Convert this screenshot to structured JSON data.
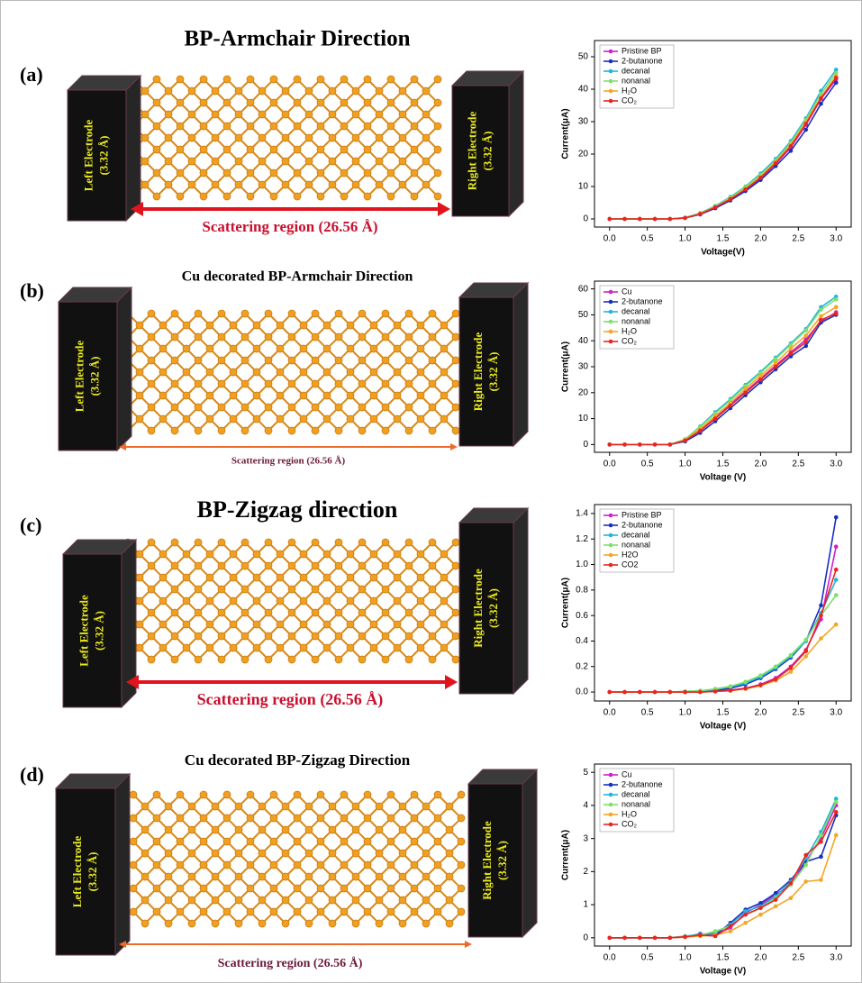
{
  "panels": [
    {
      "label": "(a)",
      "title": "BP-Armchair Direction",
      "left_electrode": "Left Electrode",
      "left_width": "(3.32 Å)",
      "right_electrode": "Right Electrode",
      "right_width": "(3.32 Å)",
      "scattering": "Scattering region (26.56 Å)"
    },
    {
      "label": "(b)",
      "title": "Cu decorated BP-Armchair Direction",
      "left_electrode": "Left Electrode",
      "left_width": "(3.32 Å)",
      "right_electrode": "Right Electrode",
      "right_width": "(3.32 Å)",
      "scattering": "Scattering region (26.56 Å)"
    },
    {
      "label": "(c)",
      "title": "BP-Zigzag direction",
      "left_electrode": "Left Electrode",
      "left_width": "(3.32 Å)",
      "right_electrode": "Right Electrode",
      "right_width": "(3.32 Å)",
      "scattering": "Scattering region (26.56 Å)"
    },
    {
      "label": "(d)",
      "title": "Cu decorated BP-Zigzag Direction",
      "left_electrode": "Left Electrode",
      "left_width": "(3.32 Å)",
      "right_electrode": "Right Electrode",
      "right_width": "(3.32 Å)",
      "scattering": "Scattering region (26.56 Å)"
    }
  ],
  "chart_data": [
    {
      "type": "line",
      "x_label": "Voltage(V)",
      "y_label": "Current(μA)",
      "x": [
        0,
        0.2,
        0.4,
        0.6,
        0.8,
        1.0,
        1.2,
        1.4,
        1.6,
        1.8,
        2.0,
        2.2,
        2.4,
        2.6,
        2.8,
        3.0
      ],
      "xlim": [
        -0.2,
        3.2
      ],
      "xticks": [
        {
          "value": 0,
          "label": "0.0"
        },
        {
          "value": 0.5,
          "label": "0.5"
        },
        {
          "value": 1,
          "label": "1.0"
        },
        {
          "value": 1.5,
          "label": "1.5"
        },
        {
          "value": 2,
          "label": "2.0"
        },
        {
          "value": 2.5,
          "label": "2.5"
        },
        {
          "value": 3,
          "label": "3.0"
        }
      ],
      "ylim": [
        -2.5,
        55
      ],
      "yticks": [
        0,
        10,
        20,
        30,
        40,
        50
      ],
      "legend": "upper-left",
      "series": [
        {
          "name": "Pristine BP",
          "color": "#d020d0",
          "values": [
            0,
            0,
            0,
            0,
            0,
            0.3,
            1.5,
            3.5,
            6,
            9,
            12.5,
            17,
            22,
            29,
            37,
            43
          ]
        },
        {
          "name": "2-butanone",
          "color": "#1a2fbf",
          "values": [
            0,
            0,
            0,
            0,
            0,
            0.3,
            1.4,
            3.3,
            5.7,
            8.6,
            12,
            16.3,
            21,
            27.5,
            35.5,
            42
          ]
        },
        {
          "name": "decanal",
          "color": "#1fb5e0",
          "values": [
            0,
            0,
            0,
            0,
            0,
            0.4,
            1.8,
            4,
            6.8,
            10,
            14,
            18.5,
            24,
            31,
            39.5,
            46
          ]
        },
        {
          "name": "nonanal",
          "color": "#7de06a",
          "values": [
            0,
            0,
            0,
            0,
            0,
            0.4,
            1.7,
            3.9,
            6.6,
            9.8,
            13.6,
            18,
            23.5,
            30.5,
            38.5,
            45
          ]
        },
        {
          "name": "H₂O",
          "color": "#f5a623",
          "values": [
            0,
            0,
            0,
            0,
            0,
            0.3,
            1.6,
            3.7,
            6.2,
            9.3,
            13,
            17.5,
            22.8,
            29.8,
            37.5,
            44
          ]
        },
        {
          "name": "CO₂",
          "color": "#e8251f",
          "values": [
            0,
            0,
            0,
            0,
            0,
            0.3,
            1.5,
            3.6,
            6.1,
            9.1,
            12.7,
            17.2,
            22.4,
            29.3,
            37.2,
            43.5
          ]
        }
      ]
    },
    {
      "type": "line",
      "x_label": "Voltage (V)",
      "y_label": "Current(μA)",
      "x": [
        0,
        0.2,
        0.4,
        0.6,
        0.8,
        1.0,
        1.2,
        1.4,
        1.6,
        1.8,
        2.0,
        2.2,
        2.4,
        2.6,
        2.8,
        3.0
      ],
      "xlim": [
        -0.2,
        3.2
      ],
      "xticks": [
        {
          "value": 0,
          "label": "0.0"
        },
        {
          "value": 0.5,
          "label": "0.5"
        },
        {
          "value": 1,
          "label": "1.0"
        },
        {
          "value": 1.5,
          "label": "1.5"
        },
        {
          "value": 2,
          "label": "2.0"
        },
        {
          "value": 2.5,
          "label": "2.5"
        },
        {
          "value": 3,
          "label": "3.0"
        }
      ],
      "ylim": [
        -3,
        63
      ],
      "yticks": [
        0,
        10,
        20,
        30,
        40,
        50,
        60
      ],
      "legend": "upper-left",
      "series": [
        {
          "name": "Cu",
          "color": "#d020d0",
          "values": [
            0,
            0,
            0,
            0,
            0,
            1.5,
            5.5,
            10.5,
            15.5,
            20.5,
            25.5,
            30.5,
            35.5,
            40.5,
            47.5,
            51
          ]
        },
        {
          "name": "2-butanone",
          "color": "#1a2fbf",
          "values": [
            0,
            0,
            0,
            0,
            0,
            1.2,
            4.5,
            9,
            14,
            19,
            24,
            29,
            34,
            38,
            47,
            50
          ]
        },
        {
          "name": "decanal",
          "color": "#1fb5e0",
          "values": [
            0,
            0,
            0,
            0,
            0,
            2,
            7,
            12.5,
            17.5,
            23,
            28,
            33.5,
            39,
            44.5,
            53,
            57
          ]
        },
        {
          "name": "nonanal",
          "color": "#7de06a",
          "values": [
            0,
            0,
            0,
            0,
            0,
            2,
            6.8,
            12,
            17,
            22.5,
            27.5,
            33,
            38.5,
            44,
            52,
            56
          ]
        },
        {
          "name": "H₂O",
          "color": "#f5a623",
          "values": [
            0,
            0,
            0,
            0,
            0,
            1.7,
            6,
            11,
            16,
            21.5,
            26.5,
            31.5,
            37,
            42,
            49.5,
            53
          ]
        },
        {
          "name": "CO₂",
          "color": "#e8251f",
          "values": [
            0,
            0,
            0,
            0,
            0,
            1.5,
            5.3,
            10,
            15,
            20,
            25,
            30,
            35,
            39.5,
            48,
            50.5
          ]
        }
      ]
    },
    {
      "type": "line",
      "x_label": "Voltage (V)",
      "y_label": "Current(μA)",
      "x": [
        0,
        0.2,
        0.4,
        0.6,
        0.8,
        1.0,
        1.2,
        1.4,
        1.6,
        1.8,
        2.0,
        2.2,
        2.4,
        2.6,
        2.8,
        3.0
      ],
      "xlim": [
        -0.2,
        3.2
      ],
      "xticks": [
        {
          "value": 0,
          "label": "0.0"
        },
        {
          "value": 0.5,
          "label": "0.5"
        },
        {
          "value": 1,
          "label": "1.0"
        },
        {
          "value": 1.5,
          "label": "1.5"
        },
        {
          "value": 2,
          "label": "2.0"
        },
        {
          "value": 2.5,
          "label": "2.5"
        },
        {
          "value": 3,
          "label": "3.0"
        }
      ],
      "ylim": [
        -0.07,
        1.47
      ],
      "yticks": [
        {
          "value": 0,
          "label": "0.0"
        },
        {
          "value": 0.2,
          "label": "0.2"
        },
        {
          "value": 0.4,
          "label": "0.4"
        },
        {
          "value": 0.6,
          "label": "0.6"
        },
        {
          "value": 0.8,
          "label": "0.8"
        },
        {
          "value": 1,
          "label": "1.0"
        },
        {
          "value": 1.2,
          "label": "1.2"
        },
        {
          "value": 1.4,
          "label": "1.4"
        }
      ],
      "legend": "upper-left",
      "series": [
        {
          "name": "Pristine BP",
          "color": "#d020d0",
          "values": [
            0,
            0,
            0,
            0,
            0,
            0,
            0,
            0.005,
            0.015,
            0.03,
            0.06,
            0.11,
            0.2,
            0.33,
            0.57,
            1.14
          ]
        },
        {
          "name": "2-butanone",
          "color": "#1a2fbf",
          "values": [
            0,
            0,
            0,
            0,
            0,
            0,
            0.005,
            0.01,
            0.03,
            0.06,
            0.11,
            0.18,
            0.27,
            0.4,
            0.68,
            1.37
          ]
        },
        {
          "name": "decanal",
          "color": "#1fb5e0",
          "values": [
            0,
            0,
            0,
            0,
            0,
            0.005,
            0.01,
            0.02,
            0.04,
            0.07,
            0.12,
            0.19,
            0.28,
            0.4,
            0.62,
            0.88
          ]
        },
        {
          "name": "nonanal",
          "color": "#7de06a",
          "values": [
            0,
            0,
            0,
            0,
            0,
            0.005,
            0.01,
            0.025,
            0.045,
            0.08,
            0.13,
            0.2,
            0.29,
            0.41,
            0.6,
            0.76
          ]
        },
        {
          "name": "H2O",
          "color": "#f5a623",
          "values": [
            0,
            0,
            0,
            0,
            0,
            0,
            0,
            0.005,
            0.01,
            0.025,
            0.05,
            0.09,
            0.16,
            0.28,
            0.42,
            0.53
          ]
        },
        {
          "name": "CO2",
          "color": "#e8251f",
          "values": [
            0,
            0,
            0,
            0,
            0,
            0,
            0,
            0.005,
            0.012,
            0.028,
            0.055,
            0.1,
            0.19,
            0.32,
            0.6,
            0.96
          ]
        }
      ]
    },
    {
      "type": "line",
      "x_label": "Voltage (V)",
      "y_label": "Current(μA)",
      "x": [
        0,
        0.2,
        0.4,
        0.6,
        0.8,
        1.0,
        1.2,
        1.4,
        1.6,
        1.8,
        2.0,
        2.2,
        2.4,
        2.6,
        2.8,
        3.0
      ],
      "xlim": [
        -0.2,
        3.2
      ],
      "xticks": [
        {
          "value": 0,
          "label": "0.0"
        },
        {
          "value": 0.5,
          "label": "0.5"
        },
        {
          "value": 1,
          "label": "1.0"
        },
        {
          "value": 1.5,
          "label": "1.5"
        },
        {
          "value": 2,
          "label": "2.0"
        },
        {
          "value": 2.5,
          "label": "2.5"
        },
        {
          "value": 3,
          "label": "3.0"
        }
      ],
      "ylim": [
        -0.25,
        5.25
      ],
      "yticks": [
        0,
        1,
        2,
        3,
        4,
        5
      ],
      "legend": "upper-left",
      "series": [
        {
          "name": "Cu",
          "color": "#d020d0",
          "values": [
            0,
            0,
            0,
            0,
            0,
            0.02,
            0.1,
            0.1,
            0.3,
            0.75,
            1.0,
            1.3,
            1.6,
            2.3,
            3.0,
            4.0
          ]
        },
        {
          "name": "2-butanone",
          "color": "#1a2fbf",
          "values": [
            0,
            0,
            0,
            0,
            0,
            0.03,
            0.12,
            0.08,
            0.45,
            0.85,
            1.05,
            1.35,
            1.75,
            2.3,
            2.45,
            3.7
          ]
        },
        {
          "name": "decanal",
          "color": "#1fb5e0",
          "values": [
            0,
            0,
            0,
            0,
            0,
            0.05,
            0.1,
            0.15,
            0.4,
            0.8,
            0.95,
            1.25,
            1.7,
            2.4,
            3.2,
            4.2
          ]
        },
        {
          "name": "nonanal",
          "color": "#7de06a",
          "values": [
            0,
            0,
            0,
            0,
            0,
            0.04,
            0.08,
            0.2,
            0.35,
            0.7,
            0.9,
            1.2,
            1.6,
            2.2,
            3.1,
            4.1
          ]
        },
        {
          "name": "H₂O",
          "color": "#f5a623",
          "values": [
            0,
            0,
            0,
            0,
            0,
            0.02,
            0.05,
            0.08,
            0.2,
            0.45,
            0.7,
            0.95,
            1.2,
            1.7,
            1.75,
            3.1
          ]
        },
        {
          "name": "CO₂",
          "color": "#e8251f",
          "values": [
            0,
            0,
            0,
            0,
            0,
            0.03,
            0.08,
            0.05,
            0.35,
            0.7,
            0.9,
            1.15,
            1.65,
            2.5,
            2.9,
            3.8
          ]
        }
      ]
    }
  ]
}
